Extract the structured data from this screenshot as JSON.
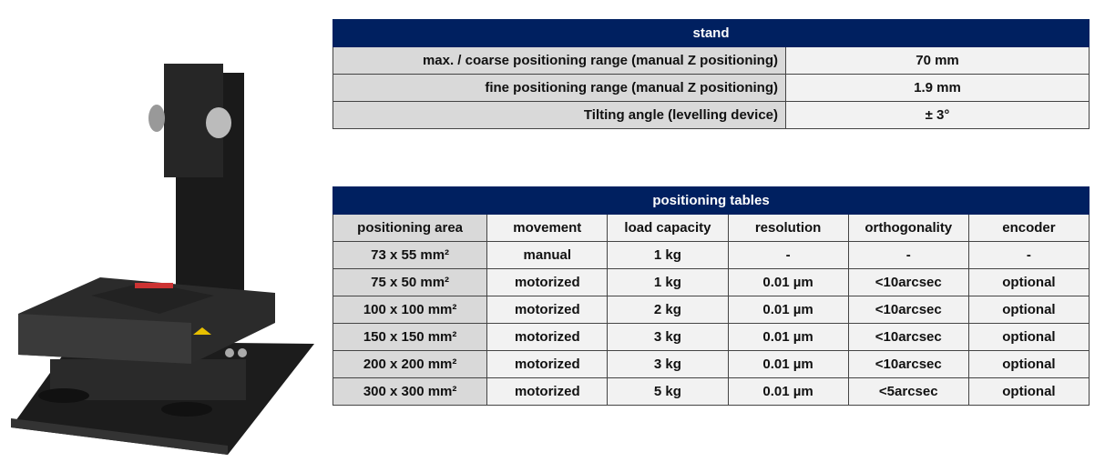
{
  "stand": {
    "title": "stand",
    "rows": [
      {
        "label": "max. / coarse positioning range (manual Z positioning)",
        "value": "70 mm"
      },
      {
        "label": "fine positioning range (manual Z positioning)",
        "value": "1.9 mm"
      },
      {
        "label": "Tilting angle (levelling device)",
        "value": "± 3°"
      }
    ]
  },
  "positioning": {
    "title": "positioning tables",
    "headers": [
      "positioning area",
      "movement",
      "load capacity",
      "resolution",
      "orthogonality",
      "encoder"
    ],
    "rows": [
      [
        "73 x 55 mm²",
        "manual",
        "1 kg",
        "-",
        "-",
        "-"
      ],
      [
        "75 x 50 mm²",
        "motorized",
        "1 kg",
        "0.01 µm",
        "<10arcsec",
        "optional"
      ],
      [
        "100 x 100 mm²",
        "motorized",
        "2 kg",
        "0.01 µm",
        "<10arcsec",
        "optional"
      ],
      [
        "150 x 150 mm²",
        "motorized",
        "3 kg",
        "0.01 µm",
        "<10arcsec",
        "optional"
      ],
      [
        "200 x 200 mm²",
        "motorized",
        "3 kg",
        "0.01 µm",
        "<10arcsec",
        "optional"
      ],
      [
        "300 x 300 mm²",
        "motorized",
        "5 kg",
        "0.01 µm",
        "<5arcsec",
        "optional"
      ]
    ]
  }
}
